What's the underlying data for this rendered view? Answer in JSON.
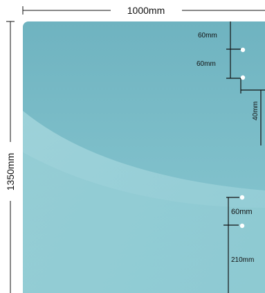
{
  "dimensions": {
    "width": "1000mm",
    "height": "1350mm",
    "top_hole_offset": "60mm",
    "hole_spacing_upper": "60mm",
    "side_offset": "40mm",
    "hole_spacing_lower": "60mm",
    "bottom_offset": "210mm"
  },
  "colors": {
    "panel_upper": "#7ec0ca",
    "panel_lower": "#8fcad3",
    "highlight_band": "#a8d8de",
    "dimension_line": "#111111",
    "hole": "#ffffff"
  }
}
